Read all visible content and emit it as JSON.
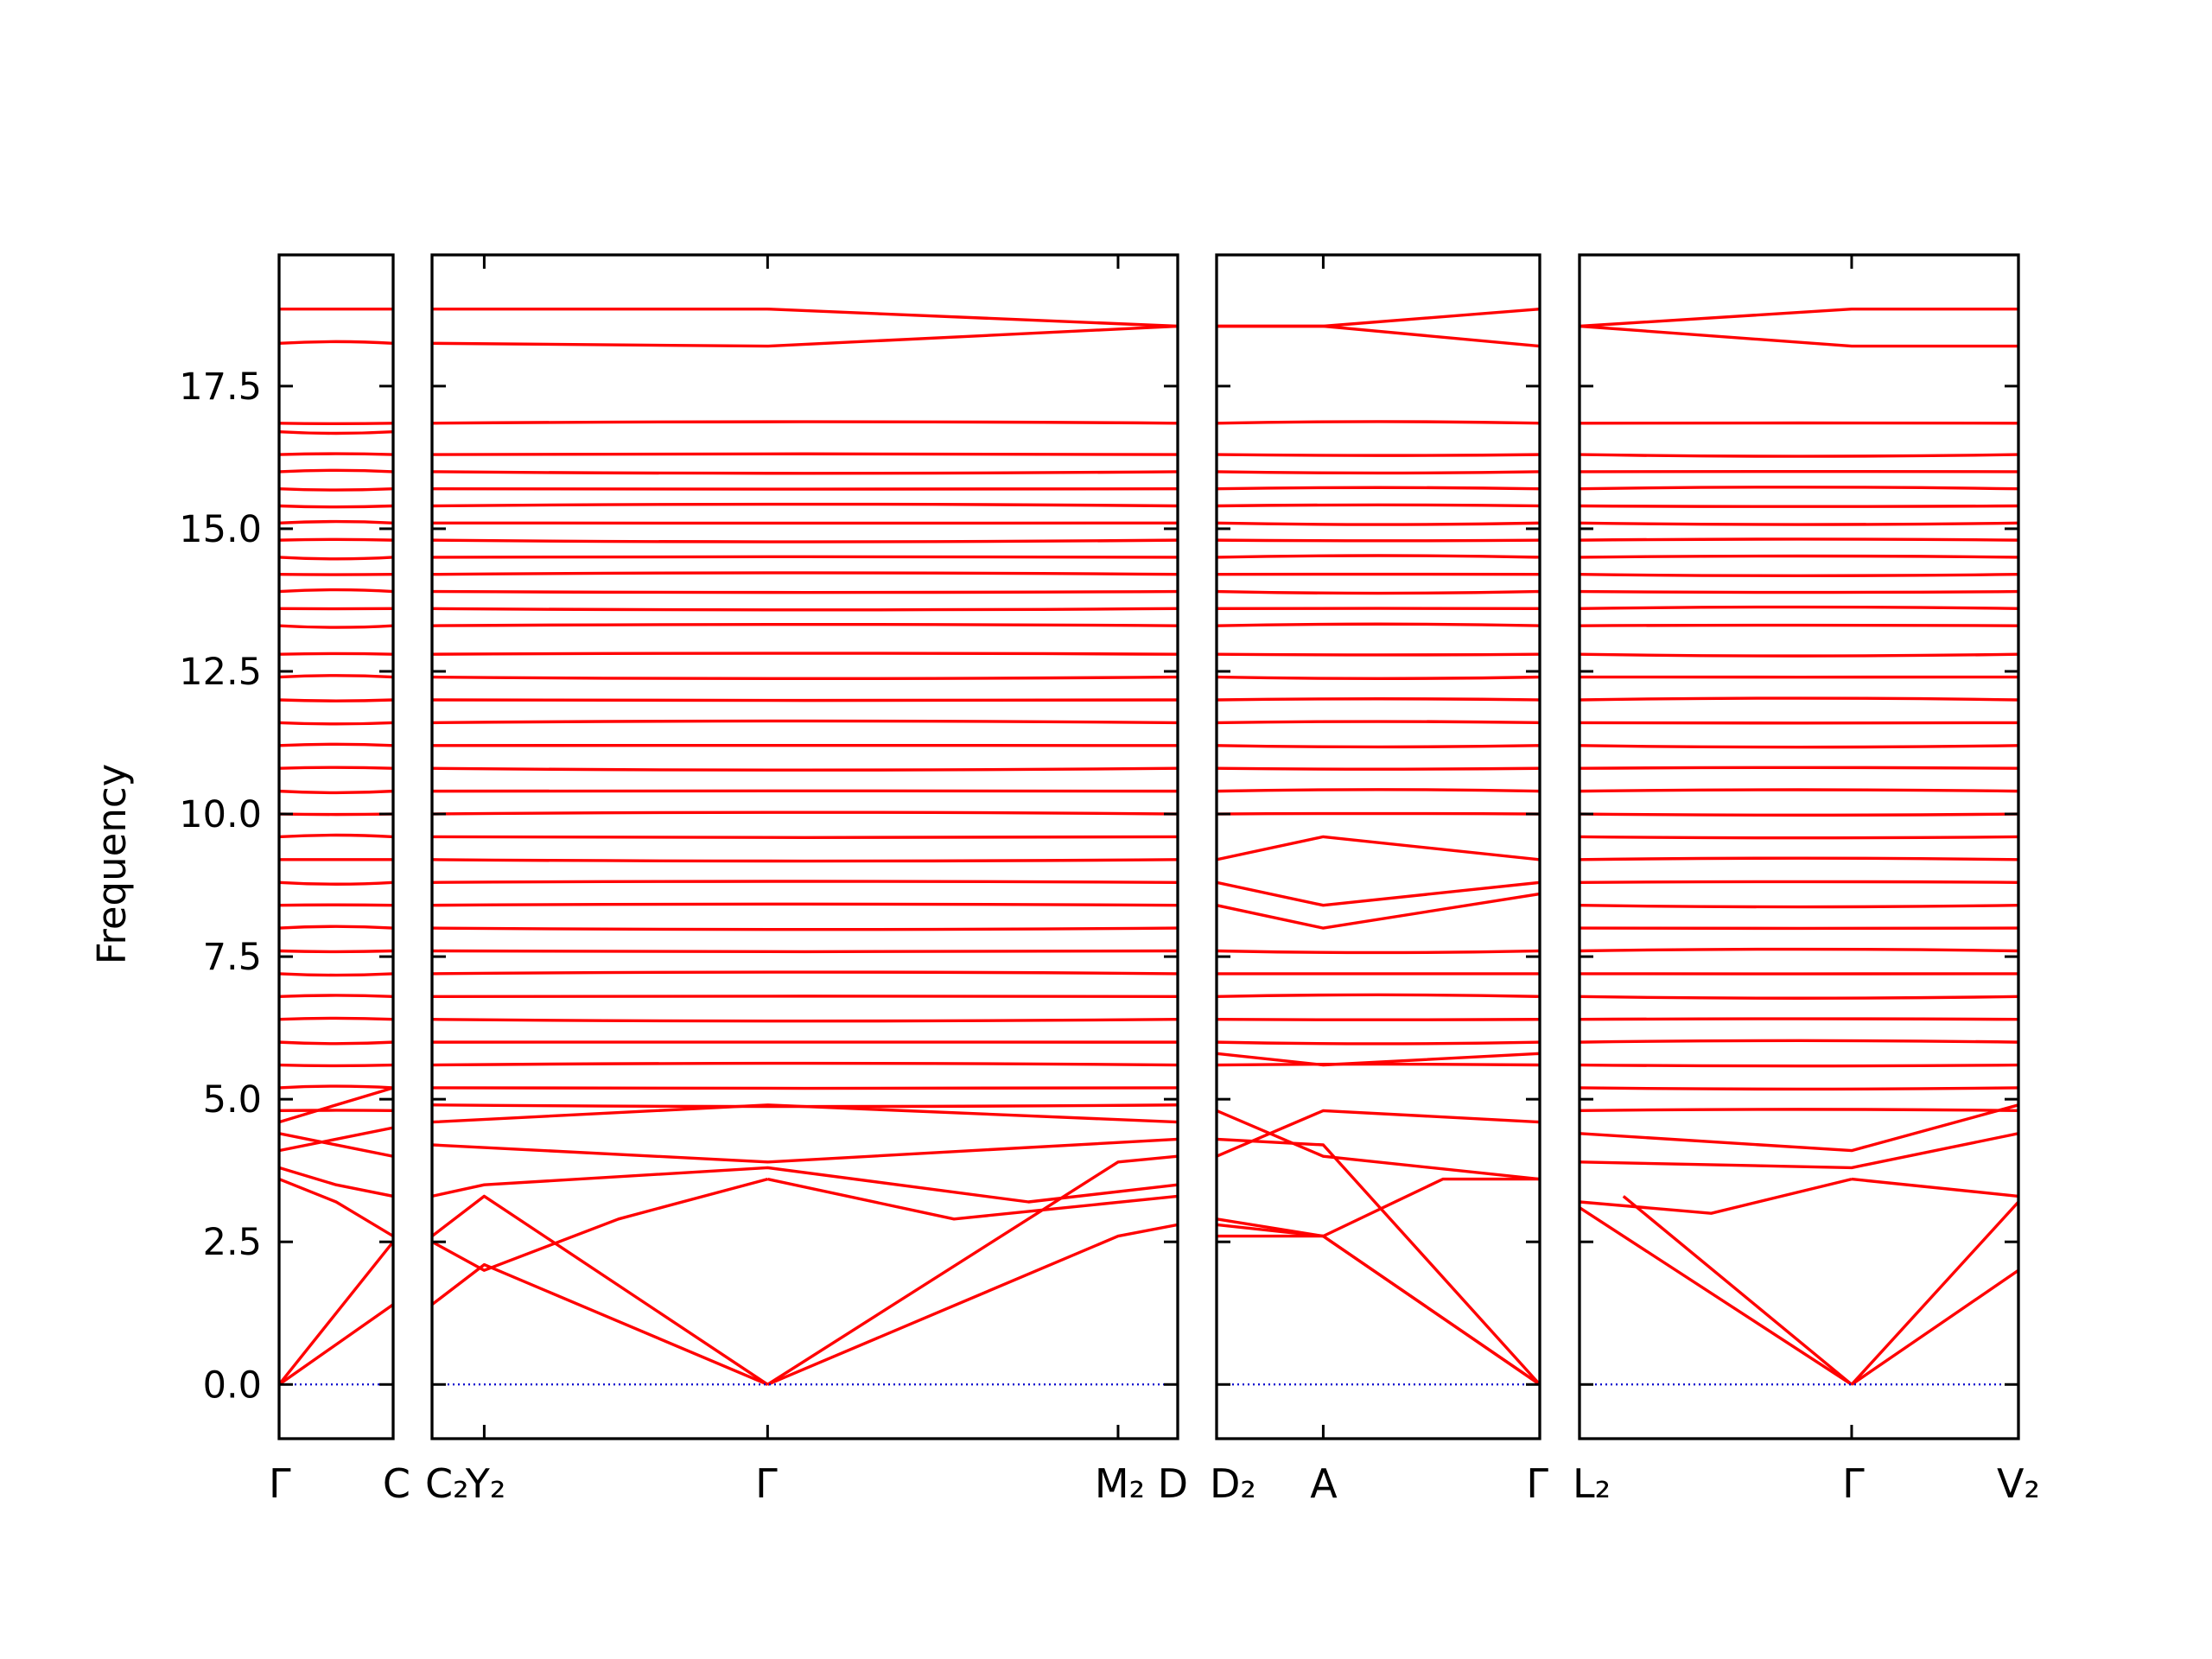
{
  "chart_data": {
    "type": "line",
    "title": "",
    "ylabel": "Frequency",
    "ylim": [
      -0.95,
      19.8
    ],
    "yticks": [
      "0.0",
      "2.5",
      "5.0",
      "7.5",
      "10.0",
      "12.5",
      "15.0",
      "17.5"
    ],
    "ytick_values": [
      0,
      2.5,
      5,
      7.5,
      10,
      12.5,
      15,
      17.5
    ],
    "colors": {
      "bands": "#ff0000",
      "zero_line": "#0000cc",
      "frame": "#000000"
    },
    "zero_line": {
      "y": 0,
      "style": "dotted"
    },
    "segments": [
      {
        "kpoint_labels": [
          "Γ",
          "C"
        ],
        "flat_levels": [
          18.85,
          18.25,
          16.85,
          16.7,
          16.3,
          16.0,
          15.7,
          15.4,
          15.1,
          14.8,
          14.5,
          14.2,
          13.9,
          13.6,
          13.3,
          12.8,
          12.4,
          12.0,
          11.6,
          11.2,
          10.8,
          10.4,
          10.0,
          9.6,
          9.2,
          8.8,
          8.4,
          8.0,
          7.6,
          7.2,
          6.8,
          6.4,
          6.0,
          5.6,
          5.2,
          4.8
        ],
        "dispersive_bands": [
          {
            "x": [
              0,
              1
            ],
            "y": [
              0,
              2.5
            ]
          },
          {
            "x": [
              0,
              1
            ],
            "y": [
              0,
              1.4
            ]
          },
          {
            "x": [
              0,
              0.5,
              1
            ],
            "y": [
              3.6,
              3.2,
              2.6
            ]
          },
          {
            "x": [
              0,
              0.5,
              1
            ],
            "y": [
              3.8,
              3.5,
              3.3
            ]
          },
          {
            "x": [
              0,
              1
            ],
            "y": [
              4.1,
              4.5
            ]
          },
          {
            "x": [
              0,
              1
            ],
            "y": [
              4.4,
              4.0
            ]
          },
          {
            "x": [
              0,
              1
            ],
            "y": [
              4.6,
              5.2
            ]
          }
        ]
      },
      {
        "kpoint_labels": [
          "C₂",
          "Y₂",
          "Γ",
          "M₂",
          "D"
        ],
        "kpoint_positions": [
          0,
          0.07,
          0.45,
          0.92,
          1
        ],
        "flat_levels": [
          16.85,
          16.3,
          16.0,
          15.7,
          15.4,
          15.1,
          14.8,
          14.5,
          14.2,
          13.9,
          13.6,
          13.3,
          12.8,
          12.4,
          12.0,
          11.6,
          11.2,
          10.8,
          10.4,
          10.0,
          9.6,
          9.2,
          8.8,
          8.4,
          8.0,
          7.6,
          7.2,
          6.8,
          6.4,
          6.0,
          5.6,
          5.2,
          4.9
        ],
        "dispersive_bands": [
          {
            "x": [
              0,
              0.45,
              1
            ],
            "y": [
              18.85,
              18.85,
              18.55
            ]
          },
          {
            "x": [
              0,
              0.45,
              1
            ],
            "y": [
              18.25,
              18.2,
              18.55
            ]
          },
          {
            "x": [
              0,
              0.07,
              0.45
            ],
            "y": [
              1.4,
              2.1,
              0
            ]
          },
          {
            "x": [
              0,
              0.07,
              0.45
            ],
            "y": [
              2.6,
              3.3,
              0
            ]
          },
          {
            "x": [
              0.45,
              0.92,
              1
            ],
            "y": [
              0,
              2.6,
              2.8
            ]
          },
          {
            "x": [
              0.45,
              0.92,
              1
            ],
            "y": [
              0,
              3.9,
              4.0
            ]
          },
          {
            "x": [
              0,
              0.07,
              0.25,
              0.45
            ],
            "y": [
              2.5,
              2.0,
              2.9,
              3.6
            ]
          },
          {
            "x": [
              0.45,
              0.7,
              1
            ],
            "y": [
              3.6,
              2.9,
              3.3
            ]
          },
          {
            "x": [
              0,
              0.07,
              0.45,
              0.8,
              1
            ],
            "y": [
              3.3,
              3.5,
              3.8,
              3.2,
              3.5
            ]
          },
          {
            "x": [
              0,
              0.45,
              1
            ],
            "y": [
              4.2,
              3.9,
              4.3
            ]
          },
          {
            "x": [
              0,
              0.45,
              1
            ],
            "y": [
              4.6,
              4.9,
              4.6
            ]
          }
        ]
      },
      {
        "kpoint_labels": [
          "D₂",
          "A",
          "Γ"
        ],
        "kpoint_positions": [
          0,
          0.33,
          1
        ],
        "flat_levels": [
          16.85,
          16.3,
          16.0,
          15.7,
          15.4,
          15.1,
          14.8,
          14.5,
          14.2,
          13.9,
          13.6,
          13.3,
          12.8,
          12.4,
          12.0,
          11.6,
          11.2,
          10.8,
          10.4,
          10.0,
          7.6,
          7.2,
          6.8,
          6.4,
          6.0,
          5.6
        ],
        "dispersive_bands": [
          {
            "x": [
              0,
              0.33,
              1
            ],
            "y": [
              18.55,
              18.55,
              18.85
            ]
          },
          {
            "x": [
              0,
              0.33,
              1
            ],
            "y": [
              18.55,
              18.55,
              18.2
            ]
          },
          {
            "x": [
              0,
              0.33,
              1
            ],
            "y": [
              2.8,
              2.6,
              0
            ]
          },
          {
            "x": [
              0,
              0.33,
              1
            ],
            "y": [
              2.9,
              2.6,
              0
            ]
          },
          {
            "x": [
              0,
              0.33,
              1
            ],
            "y": [
              4.3,
              4.2,
              0
            ]
          },
          {
            "x": [
              0,
              0.33,
              0.7,
              1
            ],
            "y": [
              2.6,
              2.6,
              3.6,
              3.6
            ]
          },
          {
            "x": [
              0,
              0.33,
              1
            ],
            "y": [
              4.8,
              4.0,
              3.6
            ]
          },
          {
            "x": [
              0,
              0.33,
              1
            ],
            "y": [
              4.0,
              4.8,
              4.6
            ]
          },
          {
            "x": [
              0,
              0.33,
              1
            ],
            "y": [
              9.2,
              9.6,
              9.2
            ]
          },
          {
            "x": [
              0,
              0.33,
              1
            ],
            "y": [
              8.8,
              8.4,
              8.8
            ]
          },
          {
            "x": [
              0,
              0.33,
              1
            ],
            "y": [
              8.4,
              8.0,
              8.6
            ]
          },
          {
            "x": [
              0,
              0.33,
              1
            ],
            "y": [
              5.8,
              5.6,
              5.8
            ]
          }
        ]
      },
      {
        "kpoint_labels": [
          "L₂",
          "Γ",
          "V₂"
        ],
        "kpoint_positions": [
          0,
          0.62,
          1
        ],
        "flat_levels": [
          16.85,
          16.3,
          16.0,
          15.7,
          15.4,
          15.1,
          14.8,
          14.5,
          14.2,
          13.9,
          13.6,
          13.3,
          12.8,
          12.4,
          12.0,
          11.6,
          11.2,
          10.8,
          10.4,
          10.0,
          9.6,
          9.2,
          8.8,
          8.4,
          8.0,
          7.6,
          7.2,
          6.8,
          6.4,
          6.0,
          5.6,
          5.2,
          4.8
        ],
        "dispersive_bands": [
          {
            "x": [
              0,
              0.62,
              1
            ],
            "y": [
              18.55,
              18.85,
              18.85
            ]
          },
          {
            "x": [
              0,
              0.62,
              1
            ],
            "y": [
              18.55,
              18.2,
              18.2
            ]
          },
          {
            "x": [
              0,
              0.62
            ],
            "y": [
              3.1,
              0
            ]
          },
          {
            "x": [
              0.1,
              0.62
            ],
            "y": [
              3.3,
              0
            ]
          },
          {
            "x": [
              0.62,
              1
            ],
            "y": [
              0,
              3.2
            ]
          },
          {
            "x": [
              0.62,
              1
            ],
            "y": [
              0,
              2.0
            ]
          },
          {
            "x": [
              0,
              0.3,
              0.62
            ],
            "y": [
              3.2,
              3.0,
              3.6
            ]
          },
          {
            "x": [
              0.62,
              1
            ],
            "y": [
              3.6,
              3.3
            ]
          },
          {
            "x": [
              0,
              0.62,
              1
            ],
            "y": [
              3.9,
              3.8,
              4.4
            ]
          },
          {
            "x": [
              0,
              0.62,
              1
            ],
            "y": [
              4.4,
              4.1,
              4.9
            ]
          }
        ]
      }
    ]
  }
}
